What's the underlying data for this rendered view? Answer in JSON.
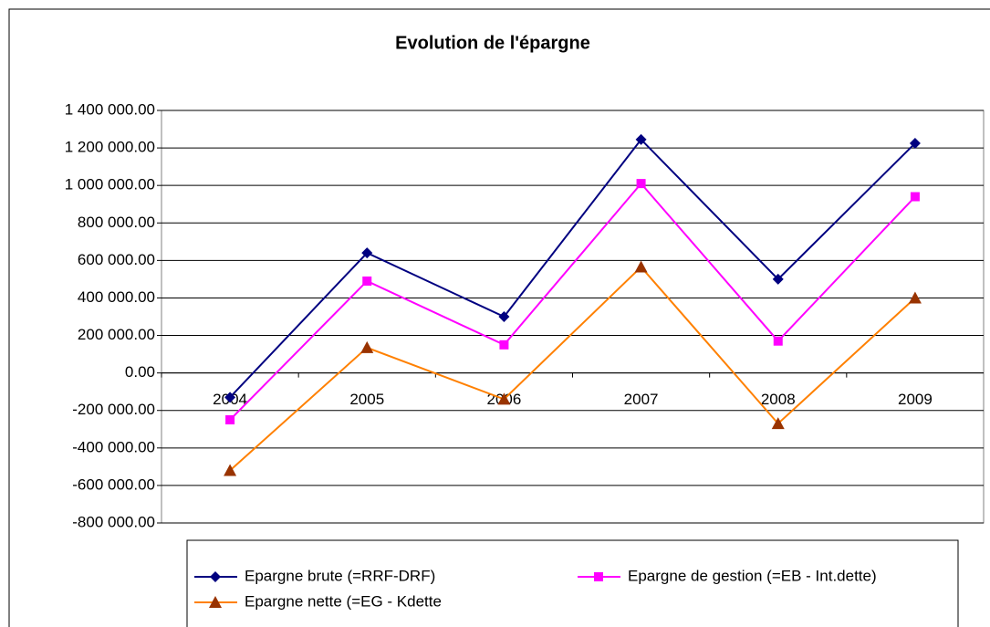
{
  "chart_data": {
    "type": "line",
    "title": "Evolution de l'épargne",
    "categories": [
      "2004",
      "2005",
      "2006",
      "2007",
      "2008",
      "2009"
    ],
    "series": [
      {
        "name": "Epargne brute (=RRF-DRF)",
        "color": "#000080",
        "marker": "diamond",
        "marker_color": "#000080",
        "values": [
          -130000,
          640000,
          300000,
          1245000,
          500000,
          1225000
        ]
      },
      {
        "name": "Epargne de gestion (=EB - Int.dette)",
        "color": "#ff00ff",
        "marker": "square",
        "marker_color": "#ff00ff",
        "values": [
          -250000,
          490000,
          150000,
          1010000,
          170000,
          940000
        ]
      },
      {
        "name": "Epargne nette (=EG - Kdette",
        "color": "#ff8000",
        "marker": "triangle",
        "marker_color": "#993300",
        "values": [
          -520000,
          135000,
          -140000,
          565000,
          -270000,
          400000
        ]
      }
    ],
    "ylim": [
      -800000,
      1400000
    ],
    "yticks": [
      {
        "value": -800000,
        "label": "-800 000.00"
      },
      {
        "value": -600000,
        "label": "-600 000.00"
      },
      {
        "value": -400000,
        "label": "-400 000.00"
      },
      {
        "value": -200000,
        "label": "-200 000.00"
      },
      {
        "value": 0,
        "label": "0.00"
      },
      {
        "value": 200000,
        "label": "200 000.00"
      },
      {
        "value": 400000,
        "label": "400 000.00"
      },
      {
        "value": 600000,
        "label": "600 000.00"
      },
      {
        "value": 800000,
        "label": "800 000.00"
      },
      {
        "value": 1000000,
        "label": "1 000 000.00"
      },
      {
        "value": 1200000,
        "label": "1 200 000.00"
      },
      {
        "value": 1400000,
        "label": "1 400 000.00"
      }
    ],
    "grid": true,
    "legend": "bottom"
  }
}
